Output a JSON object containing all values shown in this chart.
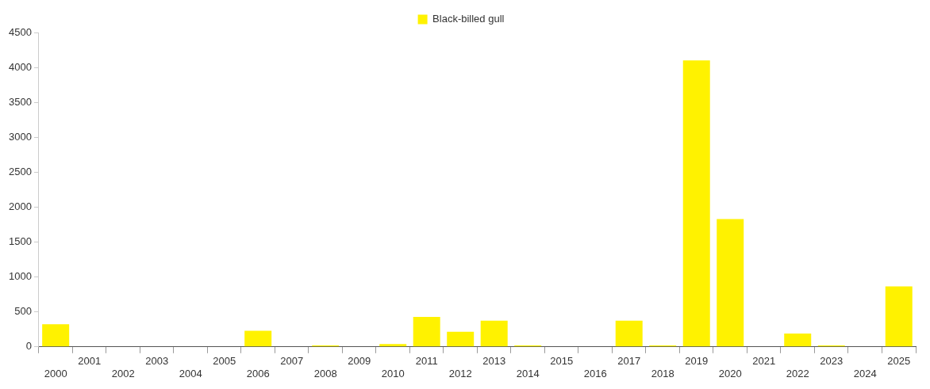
{
  "chart_data": {
    "type": "bar",
    "categories": [
      "2000",
      "2001",
      "2002",
      "2003",
      "2004",
      "2005",
      "2006",
      "2007",
      "2008",
      "2009",
      "2010",
      "2011",
      "2012",
      "2013",
      "2014",
      "2015",
      "2016",
      "2017",
      "2018",
      "2019",
      "2020",
      "2021",
      "2022",
      "2023",
      "2024",
      "2025"
    ],
    "series": [
      {
        "name": "Black-billed gull",
        "color": "#fff200",
        "values": [
          325,
          0,
          0,
          0,
          0,
          0,
          230,
          0,
          20,
          0,
          40,
          430,
          215,
          375,
          20,
          0,
          0,
          375,
          20,
          4100,
          1830,
          0,
          190,
          20,
          0,
          865
        ]
      }
    ],
    "ylim": [
      0,
      4500
    ],
    "yticks": [
      0,
      500,
      1000,
      1500,
      2000,
      2500,
      3000,
      3500,
      4000,
      4500
    ],
    "grid": false,
    "legend": "top"
  }
}
